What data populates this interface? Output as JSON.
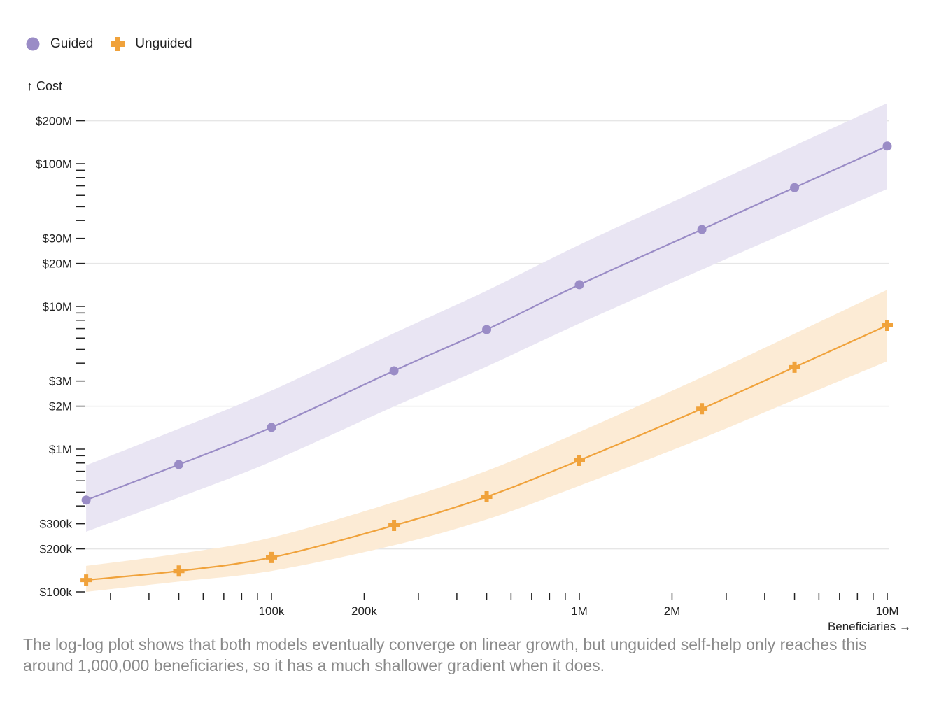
{
  "chart_data": {
    "type": "line",
    "xlabel": "Beneficiaries →",
    "ylabel": "↑ Cost",
    "x_scale": "log",
    "y_scale": "log",
    "xlim": [
      25000,
      10000000
    ],
    "ylim": [
      100000,
      200000000
    ],
    "grid": "horizontal",
    "legend_placement": "top-left",
    "x_tick_labels": [
      {
        "value": 100000,
        "label": "100k"
      },
      {
        "value": 200000,
        "label": "200k"
      },
      {
        "value": 1000000,
        "label": "1M"
      },
      {
        "value": 2000000,
        "label": "2M"
      },
      {
        "value": 10000000,
        "label": "10M"
      }
    ],
    "y_tick_labels": [
      {
        "value": 100000,
        "label": "$100k"
      },
      {
        "value": 200000,
        "label": "$200k"
      },
      {
        "value": 300000,
        "label": "$300k"
      },
      {
        "value": 1000000,
        "label": "$1M"
      },
      {
        "value": 2000000,
        "label": "$2M"
      },
      {
        "value": 3000000,
        "label": "$3M"
      },
      {
        "value": 10000000,
        "label": "$10M"
      },
      {
        "value": 20000000,
        "label": "$20M"
      },
      {
        "value": 30000000,
        "label": "$30M"
      },
      {
        "value": 100000000,
        "label": "$100M"
      },
      {
        "value": 200000000,
        "label": "$200M"
      }
    ],
    "y_gridlines": [
      200000,
      2000000,
      20000000,
      200000000
    ],
    "x": [
      25000,
      50000,
      100000,
      250000,
      500000,
      1000000,
      2500000,
      5000000,
      10000000
    ],
    "series": [
      {
        "name": "Guided",
        "color": "#9a8cc6",
        "band_color": "#e9e5f3",
        "marker": "circle",
        "values": [
          440000,
          780000,
          1420000,
          3540000,
          6890000,
          14200000,
          34600000,
          68000000,
          133000000
        ],
        "lower": [
          264000,
          459000,
          819000,
          1990000,
          3790000,
          7600000,
          18100000,
          34800000,
          66500000
        ],
        "upper": [
          770000,
          1390000,
          2570000,
          6500000,
          12900000,
          27000000,
          67000000,
          134000000,
          266000000
        ]
      },
      {
        "name": "Unguided",
        "color": "#f0a23b",
        "band_color": "#fcebd5",
        "marker": "plus",
        "values": [
          121000,
          140000,
          174000,
          292000,
          464000,
          835000,
          1920000,
          3750000,
          7370000
        ],
        "lower": [
          100000,
          118000,
          140000,
          212000,
          322000,
          554000,
          1190000,
          2220000,
          4130000
        ],
        "upper": [
          152000,
          185000,
          240000,
          426000,
          705000,
          1320000,
          3190000,
          6450000,
          13100000
        ]
      }
    ]
  },
  "caption": "The log-log plot shows that both models eventually converge on linear growth, but unguided self-help only reaches this around 1,000,000 beneficiaries, so it has a much shallower gradient when it does."
}
